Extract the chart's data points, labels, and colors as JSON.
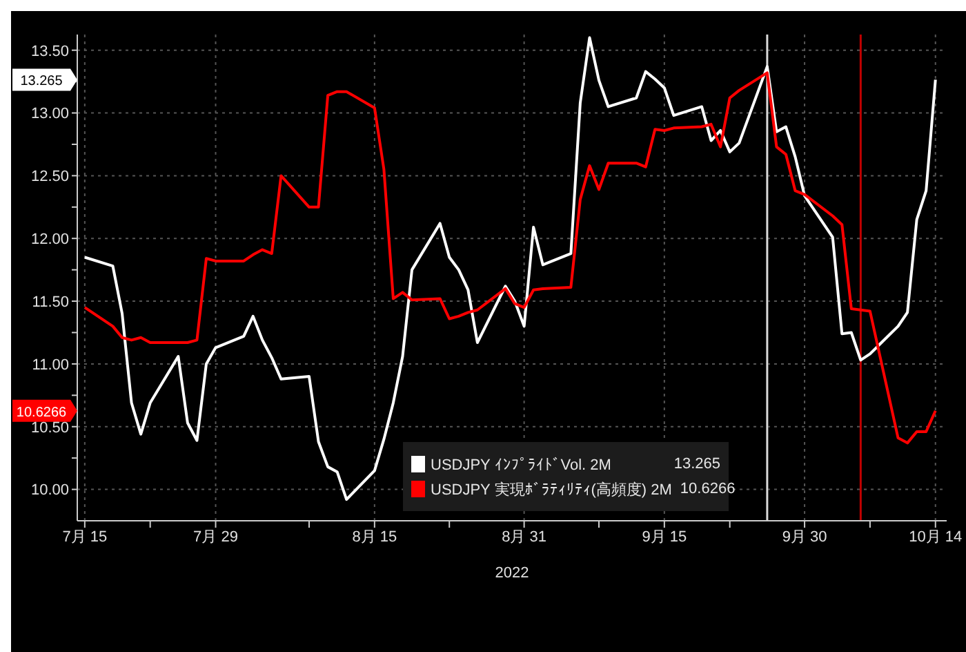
{
  "chart_data": {
    "type": "line",
    "xlabel": "2022",
    "x": [
      "2022-07-15",
      "2022-07-18",
      "2022-07-19",
      "2022-07-20",
      "2022-07-21",
      "2022-07-22",
      "2022-07-25",
      "2022-07-26",
      "2022-07-27",
      "2022-07-28",
      "2022-07-29",
      "2022-08-01",
      "2022-08-02",
      "2022-08-03",
      "2022-08-04",
      "2022-08-05",
      "2022-08-08",
      "2022-08-09",
      "2022-08-10",
      "2022-08-11",
      "2022-08-12",
      "2022-08-15",
      "2022-08-16",
      "2022-08-17",
      "2022-08-18",
      "2022-08-19",
      "2022-08-22",
      "2022-08-23",
      "2022-08-24",
      "2022-08-25",
      "2022-08-26",
      "2022-08-29",
      "2022-08-30",
      "2022-08-31",
      "2022-09-01",
      "2022-09-02",
      "2022-09-05",
      "2022-09-06",
      "2022-09-07",
      "2022-09-08",
      "2022-09-09",
      "2022-09-12",
      "2022-09-13",
      "2022-09-14",
      "2022-09-15",
      "2022-09-16",
      "2022-09-19",
      "2022-09-20",
      "2022-09-21",
      "2022-09-22",
      "2022-09-23",
      "2022-09-26",
      "2022-09-27",
      "2022-09-28",
      "2022-09-29",
      "2022-09-30",
      "2022-10-03",
      "2022-10-04",
      "2022-10-05",
      "2022-10-06",
      "2022-10-07",
      "2022-10-10",
      "2022-10-11",
      "2022-10-12",
      "2022-10-13",
      "2022-10-14"
    ],
    "series": [
      {
        "name": "USDJPY ｲﾝﾌﾟﾗｲﾄﾞVol. 2M",
        "color": "#ffffff",
        "values": [
          11.85,
          11.78,
          11.4,
          10.69,
          10.44,
          10.69,
          11.06,
          10.53,
          10.39,
          11.0,
          11.13,
          11.22,
          11.38,
          11.19,
          11.05,
          10.88,
          10.9,
          10.38,
          10.18,
          10.14,
          9.92,
          10.15,
          10.4,
          10.69,
          11.06,
          11.75,
          12.12,
          11.85,
          11.75,
          11.59,
          11.17,
          11.62,
          11.5,
          11.3,
          12.09,
          11.79,
          11.88,
          13.08,
          13.6,
          13.26,
          13.05,
          13.12,
          13.33,
          13.27,
          13.2,
          12.98,
          13.05,
          12.78,
          12.86,
          12.69,
          12.76,
          13.37,
          12.85,
          12.89,
          12.65,
          12.34,
          12.01,
          11.24,
          11.25,
          11.03,
          11.08,
          11.3,
          11.41,
          12.15,
          12.38,
          13.265
        ]
      },
      {
        "name": "USDJPY 実現ﾎﾞﾗﾃｨﾘﾃｨ(高頻度) 2M",
        "color": "#ff0000",
        "values": [
          11.45,
          11.3,
          11.21,
          11.19,
          11.21,
          11.17,
          11.17,
          11.17,
          11.19,
          11.84,
          11.82,
          11.82,
          11.87,
          11.91,
          11.88,
          12.5,
          12.25,
          12.25,
          13.14,
          13.17,
          13.17,
          13.04,
          12.55,
          11.52,
          11.57,
          11.51,
          11.52,
          11.36,
          11.38,
          11.41,
          11.43,
          11.6,
          11.48,
          11.45,
          11.59,
          11.6,
          11.61,
          12.31,
          12.58,
          12.39,
          12.6,
          12.6,
          12.57,
          12.87,
          12.86,
          12.88,
          12.89,
          12.91,
          12.73,
          13.12,
          13.18,
          13.32,
          12.73,
          12.67,
          12.38,
          12.35,
          12.18,
          12.11,
          11.44,
          11.43,
          11.42,
          10.41,
          10.37,
          10.46,
          10.46,
          10.6266
        ]
      }
    ],
    "annotations": [
      "13.265",
      "10.6266"
    ],
    "ref_lines": [
      {
        "axis": "x",
        "value": "2022-09-26",
        "color": "#d9d9d9"
      },
      {
        "axis": "x",
        "value": "2022-10-06",
        "color": "#c00000"
      }
    ],
    "xlim": [
      "2022-07-15",
      "2022-10-14"
    ],
    "xticks": [
      {
        "value": "2022-07-15",
        "label": "7月 15"
      },
      {
        "value": "2022-07-22",
        "label": null
      },
      {
        "value": "2022-07-29",
        "label": "7月 29"
      },
      {
        "value": "2022-08-08",
        "label": null
      },
      {
        "value": "2022-08-15",
        "label": "8月 15"
      },
      {
        "value": "2022-08-23",
        "label": null
      },
      {
        "value": "2022-08-31",
        "label": "8月 31"
      },
      {
        "value": "2022-09-08",
        "label": null
      },
      {
        "value": "2022-09-15",
        "label": "9月 15"
      },
      {
        "value": "2022-09-22",
        "label": null
      },
      {
        "value": "2022-09-30",
        "label": "9月 30"
      },
      {
        "value": "2022-10-07",
        "label": null
      },
      {
        "value": "2022-10-14",
        "label": "10月 14"
      }
    ],
    "ylim": [
      9.75,
      13.625
    ],
    "yticks": [
      {
        "value": 10,
        "label": "10.00"
      },
      {
        "value": 10.25,
        "label": null
      },
      {
        "value": 10.5,
        "label": "10.50"
      },
      {
        "value": 10.75,
        "label": null
      },
      {
        "value": 11,
        "label": "11.00"
      },
      {
        "value": 11.25,
        "label": null
      },
      {
        "value": 11.5,
        "label": "11.50"
      },
      {
        "value": 11.75,
        "label": null
      },
      {
        "value": 12,
        "label": "12.00"
      },
      {
        "value": 12.25,
        "label": null
      },
      {
        "value": 12.5,
        "label": "12.50"
      },
      {
        "value": 12.75,
        "label": null
      },
      {
        "value": 13,
        "label": "13.00"
      },
      {
        "value": 13.25,
        "label": null
      },
      {
        "value": 13.5,
        "label": "13.50"
      }
    ],
    "grid": true,
    "legend": "bottom"
  }
}
